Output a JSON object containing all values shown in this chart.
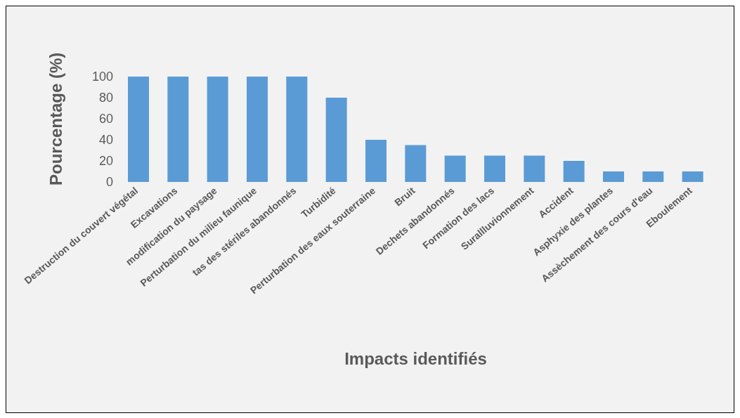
{
  "chart_data": {
    "type": "bar",
    "xlabel": "Impacts identifiés",
    "ylabel": "Pourcentage (%)",
    "categories": [
      "Destruction du couvert végétal",
      "Excavations",
      "modification du paysage",
      "Perturbation du milieu faunique",
      "tas des stériles abandonnés",
      "Turbidité",
      "Perturbation des eaux souterraine",
      "Bruit",
      "Dechets abandonnés",
      "Formation des lacs",
      "Surallluvionnement",
      "Accident",
      "Asphyxie des plantes",
      "Assèchement des cours d'eau",
      "Eboulement"
    ],
    "values": [
      100,
      100,
      100,
      100,
      100,
      80,
      40,
      35,
      25,
      25,
      25,
      20,
      10,
      10,
      10
    ],
    "color": "#5b9bd5",
    "ylim": [
      0,
      100
    ],
    "yticks": [
      0,
      20,
      40,
      60,
      80,
      100
    ],
    "grid": false,
    "legend": false
  }
}
